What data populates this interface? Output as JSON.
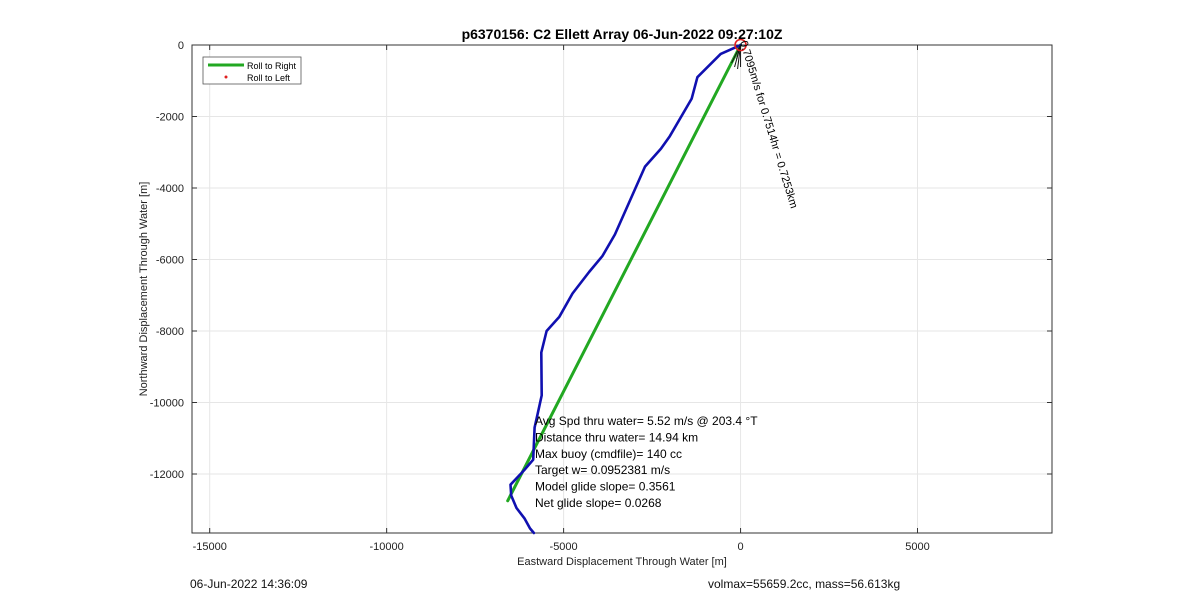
{
  "chart_data": {
    "type": "line",
    "title": "p6370156: C2 Ellett Array 06-Jun-2022 09:27:10Z",
    "xlabel": "Eastward Displacement Through Water [m]",
    "ylabel": "Northward Displacement Through Water [m]",
    "xlim": [
      -15500,
      8800
    ],
    "ylim": [
      -13650,
      0
    ],
    "x_ticks": [
      -15000,
      -10000,
      -5000,
      0,
      5000
    ],
    "x_tick_labels": [
      "-15000",
      "-10000",
      "-5000",
      "0",
      "5000"
    ],
    "y_ticks": [
      0,
      -2000,
      -4000,
      -6000,
      -8000,
      -10000,
      -12000
    ],
    "y_tick_labels": [
      "0",
      "-2000",
      "-4000",
      "-6000",
      "-8000",
      "-10000",
      "-12000"
    ],
    "grid": true,
    "legend_position": "top-left",
    "legend": [
      {
        "label": "Roll to Right",
        "color": "#22a822",
        "marker": "line"
      },
      {
        "label": "Roll to Left",
        "color": "#e02020",
        "marker": "dot"
      }
    ],
    "series": [
      {
        "name": "Roll to Right",
        "color": "#22a822",
        "x": [
          0,
          -6580
        ],
        "y": [
          0,
          -12750
        ]
      },
      {
        "color": "#1010b0",
        "x": [
          0,
          -180,
          -560,
          -1220,
          -1380,
          -2000,
          -2250,
          -2700,
          -3550,
          -3900,
          -4280,
          -4750,
          -5120,
          -5480,
          -5630,
          -5620,
          -5730,
          -5820,
          -5860,
          -6120,
          -6500,
          -6480,
          -6330,
          -6100,
          -5950,
          -5840
        ],
        "y": [
          0,
          -80,
          -250,
          -900,
          -1500,
          -2550,
          -2900,
          -3400,
          -5300,
          -5900,
          -6350,
          -6950,
          -7600,
          -8000,
          -8600,
          -9800,
          -10300,
          -10700,
          -11600,
          -11900,
          -12300,
          -12600,
          -12950,
          -13250,
          -13520,
          -13650
        ]
      }
    ],
    "start_marker": {
      "x": 0,
      "y": 0,
      "color": "#e02020"
    },
    "path_annotation": "0.7095m/s for 0.7514hr = 0.7253km",
    "annotations": [
      "Avg Spd thru water=  5.52 m/s @ 203.4 °T",
      "Distance thru water= 14.94 km",
      "Max buoy (cmdfile)= 140 cc",
      "Target w= 0.0952381 m/s",
      "Model glide slope= 0.3561",
      "Net glide slope= 0.0268"
    ]
  },
  "footer": {
    "date": "06-Jun-2022 14:36:09",
    "mass_info": "volmax=55659.2cc, mass=56.613kg"
  }
}
